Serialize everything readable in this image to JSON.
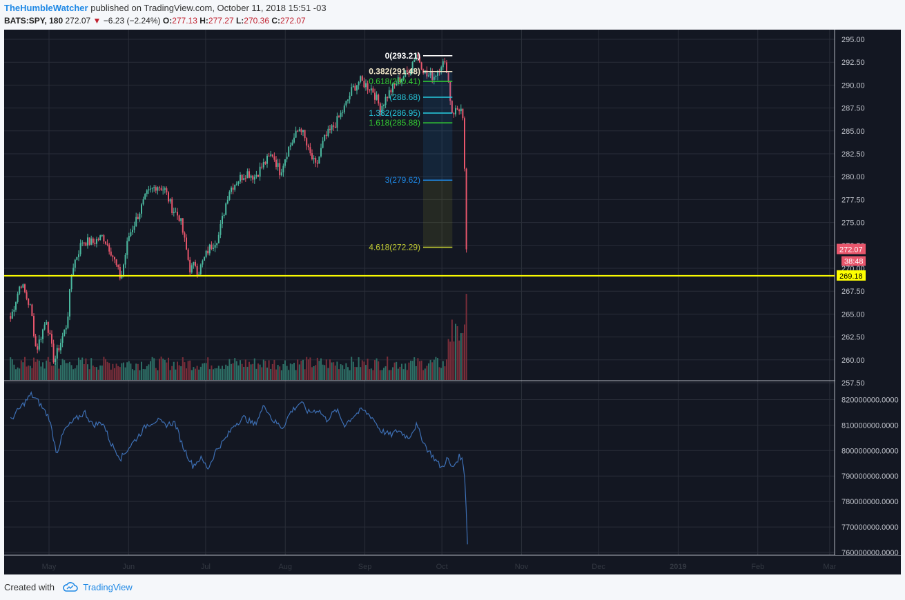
{
  "header": {
    "author": "TheHumbleWatcher",
    "published_text": "published on TradingView.com, October 11, 2018 15:51 -03",
    "symbol": "BATS:SPY, 180",
    "last": "272.07",
    "change": "−6.23 (−2.24%)",
    "o_label": "O:",
    "o_value": "277.13",
    "h_label": "H:",
    "h_value": "277.27",
    "l_label": "L:",
    "l_value": "270.36",
    "c_label": "C:",
    "c_value": "272.07"
  },
  "footer": {
    "created_with": "Created with",
    "brand": "TradingView"
  },
  "colors": {
    "background": "#131722",
    "grid": "#2a2e39",
    "up": "#4bb89f",
    "down": "#e8566c",
    "support_line": "#ffff00",
    "indicator": "#3d6fb4"
  },
  "chart_data": [
    {
      "type": "candlestick",
      "interval": "180",
      "x_labels": [
        "May",
        "Jun",
        "Jul",
        "Aug",
        "Sep",
        "Oct",
        "Nov",
        "Dec",
        "2019",
        "Feb",
        "Mar"
      ],
      "y_ticks": [
        "295.00",
        "292.50",
        "290.00",
        "287.50",
        "285.00",
        "282.50",
        "280.00",
        "277.50",
        "275.00",
        "272.50",
        "270.00",
        "267.50",
        "265.00",
        "262.50",
        "260.00",
        "257.50"
      ],
      "ylim": [
        257.5,
        295.0
      ],
      "price_path": [
        [
          "Apr 16",
          264.5
        ],
        [
          "Apr 20",
          268.5
        ],
        [
          "Apr 24",
          265.5
        ],
        [
          "Apr 26",
          261.0
        ],
        [
          "Apr 30",
          264.5
        ],
        [
          "May 3",
          259.8
        ],
        [
          "May 8",
          264.0
        ],
        [
          "May 10",
          270.0
        ],
        [
          "May 14",
          273.0
        ],
        [
          "May 18",
          272.8
        ],
        [
          "May 22",
          273.5
        ],
        [
          "May 25",
          272.0
        ],
        [
          "May 29",
          268.8
        ],
        [
          "Jun 1",
          273.5
        ],
        [
          "Jun 5",
          276.0
        ],
        [
          "Jun 8",
          278.0
        ],
        [
          "Jun 12",
          279.1
        ],
        [
          "Jun 15",
          278.6
        ],
        [
          "Jun 18",
          276.5
        ],
        [
          "Jun 21",
          275.5
        ],
        [
          "Jun 25",
          269.8
        ],
        [
          "Jun 27",
          270.5
        ],
        [
          "Jun 28",
          269.5
        ],
        [
          "Jul 2",
          272.0
        ],
        [
          "Jul 6",
          273.5
        ],
        [
          "Jul 10",
          278.5
        ],
        [
          "Jul 13",
          279.5
        ],
        [
          "Jul 17",
          280.5
        ],
        [
          "Jul 20",
          280.0
        ],
        [
          "Jul 24",
          281.5
        ],
        [
          "Jul 27",
          282.5
        ],
        [
          "Jul 30",
          280.5
        ],
        [
          "Aug 2",
          283.0
        ],
        [
          "Aug 7",
          285.5
        ],
        [
          "Aug 10",
          282.8
        ],
        [
          "Aug 13",
          281.0
        ],
        [
          "Aug 16",
          284.0
        ],
        [
          "Aug 21",
          286.0
        ],
        [
          "Aug 24",
          287.5
        ],
        [
          "Aug 27",
          289.5
        ],
        [
          "Aug 30",
          290.5
        ],
        [
          "Sep 4",
          289.5
        ],
        [
          "Sep 7",
          287.5
        ],
        [
          "Sep 10",
          289.0
        ],
        [
          "Sep 14",
          290.5
        ],
        [
          "Sep 18",
          291.5
        ],
        [
          "Sep 21",
          293.5
        ],
        [
          "Sep 25",
          291.0
        ],
        [
          "Sep 28",
          291.0
        ],
        [
          "Oct 1",
          292.5
        ],
        [
          "Oct 3",
          291.8
        ],
        [
          "Oct 4",
          289.0
        ],
        [
          "Oct 5",
          287.0
        ],
        [
          "Oct 8",
          287.5
        ],
        [
          "Oct 9",
          287.0
        ],
        [
          "Oct 10",
          279.0
        ],
        [
          "Oct 10 late",
          277.5
        ],
        [
          "Oct 11",
          272.07
        ]
      ],
      "last_price": "272.07",
      "bar_countdown": "38:48",
      "support_level": "269.18",
      "fib_levels": [
        {
          "label": "0(293.21)",
          "value": 293.21,
          "color": "#ffffff"
        },
        {
          "label": "0.382(291.48)",
          "value": 291.48,
          "color": "#f0e6c8"
        },
        {
          "label": "0.618(290.41)",
          "value": 290.41,
          "color": "#33cc33"
        },
        {
          "label": "(288.68)",
          "value": 288.68,
          "color": "#26c6da"
        },
        {
          "label": "1.382(286.95)",
          "value": 286.95,
          "color": "#26c6da"
        },
        {
          "label": "1.618(285.88)",
          "value": 285.88,
          "color": "#33cc33"
        },
        {
          "label": "3(279.62)",
          "value": 279.62,
          "color": "#1e88e5"
        },
        {
          "label": "4.618(272.29)",
          "value": 272.29,
          "color": "#c0ca33"
        }
      ]
    },
    {
      "type": "line",
      "name": "",
      "y_ticks": [
        "820000000.0000",
        "810000000.0000",
        "800000000.0000",
        "790000000.0000",
        "780000000.0000",
        "770000000.0000",
        "760000000.0000"
      ],
      "ylim": [
        760000000,
        825000000
      ],
      "values_path": [
        [
          "Apr 16",
          812000000
        ],
        [
          "Apr 20",
          817000000
        ],
        [
          "Apr 24",
          822000000
        ],
        [
          "Apr 27",
          819000000
        ],
        [
          "May 1",
          813000000
        ],
        [
          "May 4",
          799000000
        ],
        [
          "May 7",
          808000000
        ],
        [
          "May 11",
          812000000
        ],
        [
          "May 15",
          815000000
        ],
        [
          "May 18",
          810000000
        ],
        [
          "May 22",
          811000000
        ],
        [
          "May 25",
          803000000
        ],
        [
          "May 29",
          797000000
        ],
        [
          "Jun 1",
          801000000
        ],
        [
          "Jun 5",
          806000000
        ],
        [
          "Jun 8",
          810000000
        ],
        [
          "Jun 12",
          812000000
        ],
        [
          "Jun 15",
          810000000
        ],
        [
          "Jun 19",
          811000000
        ],
        [
          "Jun 22",
          802000000
        ],
        [
          "Jun 26",
          794000000
        ],
        [
          "Jun 29",
          797000000
        ],
        [
          "Jul 2",
          793000000
        ],
        [
          "Jul 5",
          800000000
        ],
        [
          "Jul 9",
          805000000
        ],
        [
          "Jul 12",
          810000000
        ],
        [
          "Jul 16",
          813000000
        ],
        [
          "Jul 20",
          810000000
        ],
        [
          "Jul 24",
          818000000
        ],
        [
          "Jul 27",
          812000000
        ],
        [
          "Jul 31",
          809000000
        ],
        [
          "Aug 3",
          815000000
        ],
        [
          "Aug 7",
          819000000
        ],
        [
          "Aug 10",
          815000000
        ],
        [
          "Aug 14",
          816000000
        ],
        [
          "Aug 17",
          812000000
        ],
        [
          "Aug 21",
          816000000
        ],
        [
          "Aug 24",
          810000000
        ],
        [
          "Aug 28",
          814000000
        ],
        [
          "Aug 31",
          816000000
        ],
        [
          "Sep 4",
          813000000
        ],
        [
          "Sep 7",
          808000000
        ],
        [
          "Sep 11",
          806000000
        ],
        [
          "Sep 14",
          808000000
        ],
        [
          "Sep 18",
          805000000
        ],
        [
          "Sep 21",
          810000000
        ],
        [
          "Sep 25",
          801000000
        ],
        [
          "Sep 28",
          797000000
        ],
        [
          "Oct 1",
          793000000
        ],
        [
          "Oct 3",
          797000000
        ],
        [
          "Oct 5",
          793000000
        ],
        [
          "Oct 8",
          798000000
        ],
        [
          "Oct 9",
          796000000
        ],
        [
          "Oct 10",
          789000000
        ],
        [
          "Oct 11",
          762000000
        ]
      ]
    }
  ]
}
